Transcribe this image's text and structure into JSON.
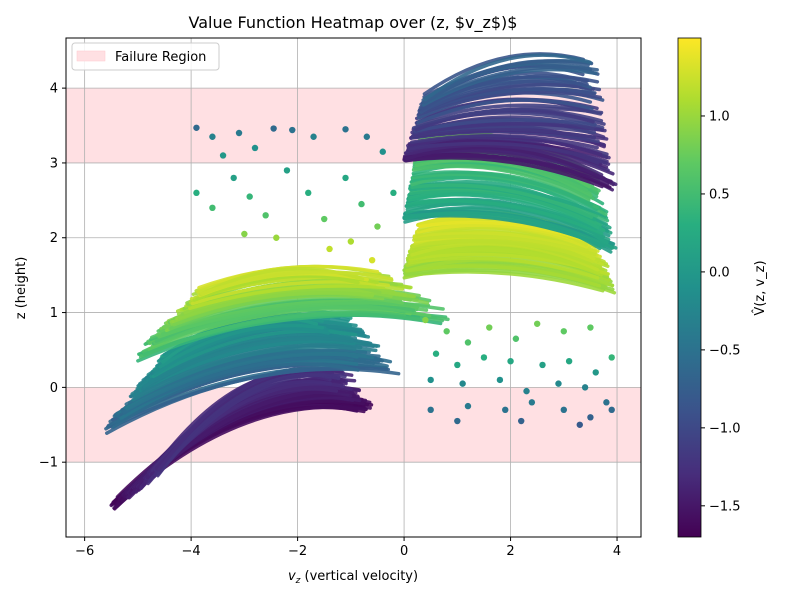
{
  "chart_data": {
    "type": "scatter",
    "title": "Value Function Heatmap over (z, $v_z$)$",
    "xlabel_main": "v",
    "xlabel_sub": "z",
    "xlabel_rest": " (vertical velocity)",
    "ylabel": "z (height)",
    "xlim": [
      -6.35,
      4.45
    ],
    "ylim": [
      -2.0,
      4.67
    ],
    "xticks": [
      -6,
      -4,
      -2,
      0,
      2,
      4
    ],
    "yticks": [
      -1,
      0,
      1,
      2,
      3,
      4
    ],
    "grid": true,
    "legend": {
      "placement": "upper-left",
      "entries": [
        "Failure Region"
      ]
    },
    "failure_regions": [
      {
        "z_min": 3,
        "z_max": 4
      },
      {
        "z_min": -1,
        "z_max": 0
      }
    ],
    "failure_color": "#ffe0e3",
    "colorbar": {
      "label": "V̂(z, v_z)",
      "range": [
        -1.7,
        1.5
      ],
      "ticks": [
        "1.0",
        "0.5",
        "0.0",
        "−0.5",
        "−1.0",
        "−1.5"
      ],
      "tick_values": [
        1.0,
        0.5,
        0.0,
        -0.5,
        -1.0,
        -1.5
      ],
      "colormap": "viridis"
    },
    "trajectory_groups": [
      {
        "vz_start": [
          -5.5,
          -4.6
        ],
        "z_start": [
          -1.6,
          -1.1
        ],
        "vz_end": [
          -2.0,
          -0.5
        ],
        "z_end": [
          -0.3,
          0.2
        ],
        "value": [
          -1.7,
          -1.2
        ]
      },
      {
        "vz_start": [
          -5.6,
          -4.5
        ],
        "z_start": [
          -0.6,
          0.4
        ],
        "vz_end": [
          -2.5,
          0.0
        ],
        "z_end": [
          0.2,
          0.9
        ],
        "value": [
          -0.8,
          0.1
        ]
      },
      {
        "vz_start": [
          -5.0,
          -3.8
        ],
        "z_start": [
          0.4,
          1.3
        ],
        "vz_end": [
          -2.0,
          1.0
        ],
        "z_end": [
          0.9,
          1.5
        ],
        "value": [
          0.3,
          1.4
        ]
      },
      {
        "vz_start": [
          0.0,
          0.3
        ],
        "z_start": [
          1.5,
          2.2
        ],
        "vz_end": [
          3.0,
          4.0
        ],
        "z_end": [
          1.3,
          2.0
        ],
        "value": [
          0.9,
          1.4
        ]
      },
      {
        "vz_start": [
          0.0,
          0.3
        ],
        "z_start": [
          2.2,
          3.3
        ],
        "vz_end": [
          3.0,
          4.0
        ],
        "z_end": [
          1.8,
          2.9
        ],
        "value": [
          -0.1,
          0.9
        ]
      },
      {
        "vz_start": [
          0.0,
          0.4
        ],
        "z_start": [
          3.0,
          3.9
        ],
        "vz_end": [
          3.0,
          4.0
        ],
        "z_end": [
          2.6,
          4.4
        ],
        "value": [
          -1.6,
          -0.6
        ]
      }
    ],
    "scatter_points": [
      {
        "vz": -3.9,
        "z": 3.47,
        "v": -0.6
      },
      {
        "vz": -3.6,
        "z": 3.35,
        "v": -0.3
      },
      {
        "vz": -3.4,
        "z": 3.1,
        "v": 0.0
      },
      {
        "vz": -3.1,
        "z": 3.4,
        "v": -0.4
      },
      {
        "vz": -2.8,
        "z": 3.2,
        "v": -0.1
      },
      {
        "vz": -2.45,
        "z": 3.46,
        "v": -0.6
      },
      {
        "vz": -2.1,
        "z": 3.44,
        "v": -0.5
      },
      {
        "vz": -1.7,
        "z": 3.35,
        "v": -0.3
      },
      {
        "vz": -1.1,
        "z": 3.45,
        "v": -0.5
      },
      {
        "vz": -0.7,
        "z": 3.35,
        "v": -0.4
      },
      {
        "vz": -0.4,
        "z": 3.15,
        "v": -0.1
      },
      {
        "vz": -3.9,
        "z": 2.6,
        "v": 0.3
      },
      {
        "vz": -3.6,
        "z": 2.4,
        "v": 0.5
      },
      {
        "vz": -3.2,
        "z": 2.8,
        "v": 0.1
      },
      {
        "vz": -2.9,
        "z": 2.55,
        "v": 0.4
      },
      {
        "vz": -2.6,
        "z": 2.3,
        "v": 0.6
      },
      {
        "vz": -2.2,
        "z": 2.9,
        "v": 0.1
      },
      {
        "vz": -1.8,
        "z": 2.6,
        "v": 0.3
      },
      {
        "vz": -1.5,
        "z": 2.25,
        "v": 0.7
      },
      {
        "vz": -1.1,
        "z": 2.8,
        "v": 0.2
      },
      {
        "vz": -0.8,
        "z": 2.45,
        "v": 0.5
      },
      {
        "vz": -0.5,
        "z": 2.15,
        "v": 0.8
      },
      {
        "vz": -0.2,
        "z": 2.6,
        "v": 0.3
      },
      {
        "vz": -1.0,
        "z": 1.95,
        "v": 1.1
      },
      {
        "vz": -0.6,
        "z": 1.7,
        "v": 1.3
      },
      {
        "vz": -1.4,
        "z": 1.85,
        "v": 1.2
      },
      {
        "vz": -3.0,
        "z": 2.05,
        "v": 0.9
      },
      {
        "vz": -2.4,
        "z": 2.0,
        "v": 1.0
      },
      {
        "vz": 0.4,
        "z": 0.9,
        "v": 0.9
      },
      {
        "vz": 0.8,
        "z": 0.75,
        "v": 0.7
      },
      {
        "vz": 1.2,
        "z": 0.6,
        "v": 0.6
      },
      {
        "vz": 1.6,
        "z": 0.8,
        "v": 0.8
      },
      {
        "vz": 2.1,
        "z": 0.65,
        "v": 0.6
      },
      {
        "vz": 2.5,
        "z": 0.85,
        "v": 0.8
      },
      {
        "vz": 3.0,
        "z": 0.75,
        "v": 0.7
      },
      {
        "vz": 3.5,
        "z": 0.8,
        "v": 0.7
      },
      {
        "vz": 3.9,
        "z": 0.4,
        "v": 0.4
      },
      {
        "vz": 0.6,
        "z": 0.45,
        "v": 0.3
      },
      {
        "vz": 1.0,
        "z": 0.3,
        "v": 0.2
      },
      {
        "vz": 1.5,
        "z": 0.4,
        "v": 0.3
      },
      {
        "vz": 2.0,
        "z": 0.35,
        "v": 0.2
      },
      {
        "vz": 2.6,
        "z": 0.3,
        "v": 0.1
      },
      {
        "vz": 3.1,
        "z": 0.35,
        "v": 0.2
      },
      {
        "vz": 3.6,
        "z": 0.2,
        "v": 0.0
      },
      {
        "vz": 0.5,
        "z": 0.1,
        "v": -0.1
      },
      {
        "vz": 1.1,
        "z": 0.05,
        "v": -0.2
      },
      {
        "vz": 1.8,
        "z": 0.1,
        "v": -0.1
      },
      {
        "vz": 2.3,
        "z": -0.05,
        "v": -0.3
      },
      {
        "vz": 2.9,
        "z": 0.05,
        "v": -0.2
      },
      {
        "vz": 3.4,
        "z": 0.0,
        "v": -0.3
      },
      {
        "vz": 0.5,
        "z": -0.3,
        "v": -0.5
      },
      {
        "vz": 1.2,
        "z": -0.25,
        "v": -0.4
      },
      {
        "vz": 1.9,
        "z": -0.3,
        "v": -0.5
      },
      {
        "vz": 2.4,
        "z": -0.2,
        "v": -0.4
      },
      {
        "vz": 3.0,
        "z": -0.3,
        "v": -0.5
      },
      {
        "vz": 3.5,
        "z": -0.4,
        "v": -0.7
      },
      {
        "vz": 3.8,
        "z": -0.2,
        "v": -0.5
      },
      {
        "vz": 1.0,
        "z": -0.45,
        "v": -0.6
      },
      {
        "vz": 2.2,
        "z": -0.45,
        "v": -0.7
      },
      {
        "vz": 3.3,
        "z": -0.5,
        "v": -0.8
      },
      {
        "vz": 3.9,
        "z": -0.3,
        "v": -0.6
      }
    ]
  }
}
